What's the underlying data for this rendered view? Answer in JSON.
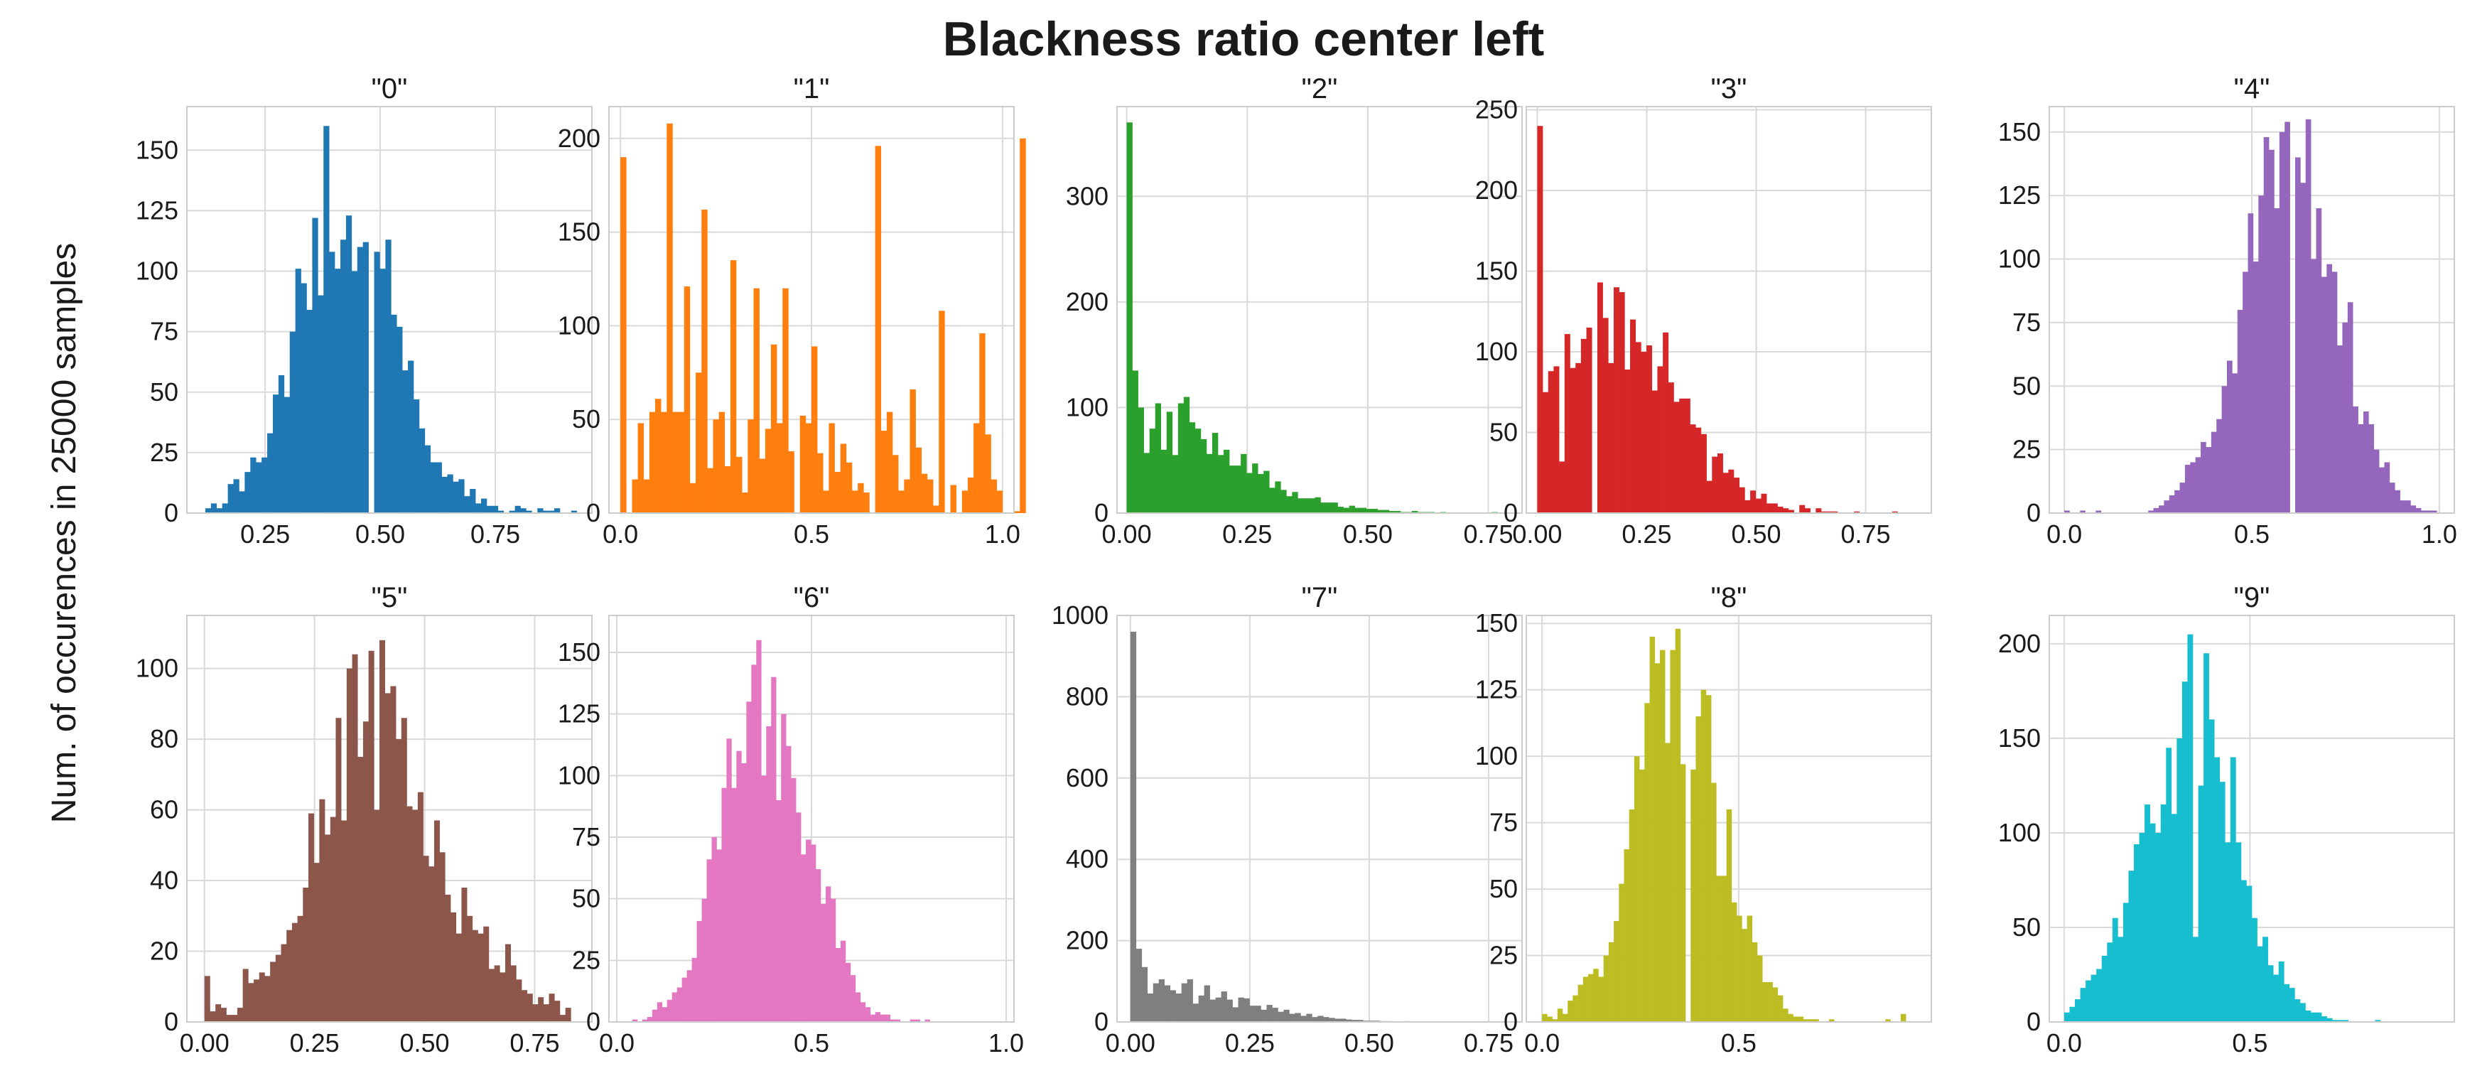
{
  "figure": {
    "title": "Blackness ratio center left",
    "ylabel": "Num. of occurences in 25000 samples"
  },
  "chart_data": [
    {
      "type": "bar",
      "title": "\"0\"",
      "color": "#1f77b4",
      "xlim": [
        0.08,
        0.96
      ],
      "ylim": [
        0,
        168
      ],
      "xticks": [
        0.25,
        0.5,
        0.75
      ],
      "xticklabels": [
        "0.25",
        "0.50",
        "0.75"
      ],
      "yticks": [
        0,
        25,
        50,
        75,
        100,
        125,
        150
      ],
      "yticklabels": [
        "0",
        "25",
        "50",
        "75",
        "100",
        "125",
        "150"
      ],
      "bin_start": 0.12,
      "bin_width": 0.01223,
      "values": [
        2,
        4,
        2,
        4,
        12,
        14,
        9,
        17,
        23,
        21,
        23,
        33,
        49,
        57,
        48,
        75,
        101,
        95,
        84,
        122,
        90,
        160,
        108,
        101,
        113,
        123,
        100,
        110,
        112,
        0,
        108,
        101,
        113,
        82,
        77,
        59,
        63,
        47,
        35,
        28,
        21,
        21,
        15,
        16,
        13,
        14,
        7,
        10,
        4,
        6,
        3,
        3,
        1,
        0,
        1,
        3,
        2,
        1,
        0,
        2,
        1,
        1,
        2,
        0,
        0,
        1
      ]
    },
    {
      "type": "bar",
      "title": "\"1\"",
      "color": "#ff7f0e",
      "xlim": [
        -0.03,
        1.03
      ],
      "ylim": [
        0,
        217
      ],
      "xticks": [
        0,
        0.5,
        1
      ],
      "xticklabels": [
        "0.0",
        "0.5",
        "1.0"
      ],
      "yticks": [
        0,
        50,
        100,
        150,
        200
      ],
      "yticklabels": [
        "0",
        "50",
        "100",
        "150",
        "200"
      ],
      "bin_start": 0,
      "bin_width": 0.01515,
      "values": [
        190,
        0,
        18,
        48,
        18,
        54,
        61,
        54,
        208,
        54,
        54,
        121,
        16,
        75,
        162,
        24,
        50,
        54,
        25,
        135,
        30,
        11,
        50,
        120,
        29,
        45,
        90,
        48,
        120,
        33,
        0,
        52,
        48,
        89,
        32,
        12,
        48,
        22,
        37,
        27,
        12,
        16,
        11,
        0,
        196,
        44,
        54,
        31,
        12,
        18,
        66,
        35,
        21,
        18,
        4,
        108,
        0,
        15,
        0,
        12,
        19,
        48,
        96,
        42,
        18,
        12,
        0,
        0,
        1,
        200
      ]
    },
    {
      "type": "bar",
      "title": "\"2\"",
      "color": "#2ca02c",
      "xlim": [
        -0.02,
        0.82
      ],
      "ylim": [
        0,
        385
      ],
      "xticks": [
        0,
        0.25,
        0.5,
        0.75
      ],
      "xticklabels": [
        "0.00",
        "0.25",
        "0.50",
        "0.75"
      ],
      "yticks": [
        0,
        100,
        200,
        300
      ],
      "yticklabels": [
        "0",
        "100",
        "200",
        "300"
      ],
      "bin_start": 0,
      "bin_width": 0.01183,
      "values": [
        370,
        135,
        100,
        57,
        80,
        104,
        60,
        96,
        55,
        104,
        110,
        86,
        80,
        70,
        56,
        76,
        55,
        60,
        45,
        45,
        56,
        38,
        47,
        37,
        40,
        24,
        30,
        22,
        16,
        20,
        14,
        14,
        14,
        15,
        10,
        10,
        10,
        6,
        5,
        7,
        5,
        5,
        4,
        4,
        3,
        3,
        2,
        2,
        1,
        1,
        2,
        1,
        1,
        1,
        0,
        1,
        0,
        0,
        0,
        0,
        0,
        0,
        0,
        0,
        1
      ]
    },
    {
      "type": "bar",
      "title": "\"3\"",
      "color": "#d62728",
      "xlim": [
        -0.025,
        0.9
      ],
      "ylim": [
        0,
        252
      ],
      "xticks": [
        0,
        0.25,
        0.5,
        0.75
      ],
      "xticklabels": [
        "0.00",
        "0.25",
        "0.50",
        "0.75"
      ],
      "yticks": [
        0,
        50,
        100,
        150,
        200,
        250
      ],
      "yticklabels": [
        "0",
        "50",
        "100",
        "150",
        "200",
        "250"
      ],
      "bin_start": 0,
      "bin_width": 0.01247,
      "values": [
        240,
        75,
        88,
        91,
        32,
        111,
        90,
        93,
        108,
        115,
        0,
        143,
        121,
        93,
        140,
        137,
        89,
        120,
        106,
        100,
        104,
        76,
        91,
        112,
        81,
        69,
        71,
        71,
        55,
        53,
        49,
        20,
        35,
        37,
        25,
        27,
        22,
        16,
        8,
        14,
        9,
        12,
        6,
        6,
        4,
        3,
        2,
        0,
        5,
        3,
        0,
        3,
        1,
        1,
        1,
        0,
        0,
        0,
        1,
        0,
        0,
        0,
        0,
        0,
        0,
        1,
        0,
        0,
        0
      ]
    },
    {
      "type": "bar",
      "title": "\"4\"",
      "color": "#9467bd",
      "xlim": [
        -0.04,
        1.04
      ],
      "ylim": [
        0,
        160
      ],
      "xticks": [
        0,
        0.5,
        1
      ],
      "xticklabels": [
        "0.0",
        "0.5",
        "1.0"
      ],
      "yticks": [
        0,
        25,
        50,
        75,
        100,
        125,
        150
      ],
      "yticklabels": [
        "0",
        "25",
        "50",
        "75",
        "100",
        "125",
        "150"
      ],
      "bin_start": 0,
      "bin_width": 0.01399,
      "values": [
        1,
        0,
        0,
        1,
        0,
        0,
        1,
        0,
        0,
        0,
        0,
        0,
        0,
        0,
        0,
        0,
        1,
        2,
        3,
        5,
        7,
        9,
        12,
        19,
        20,
        22,
        28,
        26,
        32,
        37,
        50,
        60,
        55,
        80,
        95,
        118,
        99,
        125,
        148,
        143,
        120,
        150,
        154,
        0,
        140,
        130,
        155,
        100,
        120,
        93,
        98,
        95,
        66,
        75,
        83,
        42,
        35,
        40,
        35,
        25,
        18,
        20,
        12,
        9,
        5,
        5,
        3,
        2,
        1,
        1,
        1
      ]
    },
    {
      "type": "bar",
      "title": "\"5\"",
      "color": "#8c564b",
      "xlim": [
        -0.04,
        0.88
      ],
      "ylim": [
        0,
        115
      ],
      "xticks": [
        0,
        0.25,
        0.5,
        0.75
      ],
      "xticklabels": [
        "0.00",
        "0.25",
        "0.50",
        "0.75"
      ],
      "yticks": [
        0,
        20,
        40,
        60,
        80,
        100
      ],
      "yticklabels": [
        "0",
        "20",
        "40",
        "60",
        "80",
        "100"
      ],
      "bin_start": 0,
      "bin_width": 0.01242,
      "values": [
        13,
        3,
        5,
        4,
        2,
        2,
        4,
        15,
        11,
        12,
        14,
        13,
        17,
        19,
        22,
        26,
        28,
        30,
        38,
        59,
        45,
        63,
        53,
        58,
        86,
        57,
        100,
        104,
        75,
        85,
        105,
        60,
        108,
        93,
        95,
        80,
        86,
        61,
        60,
        65,
        47,
        44,
        57,
        48,
        36,
        31,
        25,
        38,
        30,
        26,
        25,
        27,
        15,
        16,
        14,
        22,
        16,
        12,
        9,
        8,
        5,
        7,
        5,
        8,
        6,
        2,
        4
      ]
    },
    {
      "type": "bar",
      "title": "\"6\"",
      "color": "#e377c2",
      "xlim": [
        -0.02,
        1.02
      ],
      "ylim": [
        0,
        165
      ],
      "xticks": [
        0,
        0.5,
        1
      ],
      "xticklabels": [
        "0.0",
        "0.5",
        "1.0"
      ],
      "yticks": [
        0,
        25,
        50,
        75,
        100,
        125,
        150
      ],
      "yticklabels": [
        "0",
        "25",
        "50",
        "75",
        "100",
        "125",
        "150"
      ],
      "bin_start": 0.04,
      "bin_width": 0.01273,
      "values": [
        1,
        0,
        1,
        2,
        5,
        8,
        6,
        9,
        12,
        14,
        18,
        21,
        26,
        41,
        50,
        66,
        75,
        70,
        95,
        115,
        95,
        110,
        105,
        130,
        145,
        155,
        100,
        120,
        140,
        90,
        125,
        112,
        99,
        85,
        68,
        74,
        72,
        62,
        48,
        55,
        50,
        30,
        33,
        24,
        19,
        12,
        8,
        6,
        3,
        4,
        3,
        3,
        1,
        1,
        0,
        0,
        1,
        1,
        0,
        1,
        0,
        0
      ]
    },
    {
      "type": "bar",
      "title": "\"7\"",
      "color": "#7f7f7f",
      "xlim": [
        -0.028,
        0.82
      ],
      "ylim": [
        0,
        1000
      ],
      "xticks": [
        0,
        0.25,
        0.5,
        0.75
      ],
      "xticklabels": [
        "0.00",
        "0.25",
        "0.50",
        "0.75"
      ],
      "yticks": [
        0,
        200,
        400,
        600,
        800,
        1000
      ],
      "yticklabels": [
        "0",
        "200",
        "400",
        "600",
        "800",
        "1000"
      ],
      "bin_start": 0,
      "bin_width": 0.01188,
      "values": [
        960,
        180,
        135,
        70,
        95,
        105,
        90,
        78,
        70,
        95,
        105,
        45,
        65,
        90,
        55,
        60,
        75,
        55,
        36,
        60,
        58,
        40,
        40,
        30,
        42,
        35,
        25,
        30,
        20,
        22,
        15,
        20,
        12,
        15,
        12,
        10,
        8,
        8,
        6,
        5,
        5,
        3,
        3,
        3,
        2,
        2,
        1,
        1,
        2,
        1,
        1,
        1,
        0,
        0,
        1,
        0,
        0,
        0,
        0,
        0,
        0,
        0,
        0,
        1
      ]
    },
    {
      "type": "bar",
      "title": "\"8\"",
      "color": "#bcbd22",
      "xlim": [
        -0.04,
        0.99
      ],
      "ylim": [
        0,
        153
      ],
      "xticks": [
        0,
        0.5
      ],
      "xticklabels": [
        "0.0",
        "0.5"
      ],
      "yticks": [
        0,
        25,
        50,
        75,
        100,
        125,
        150
      ],
      "yticklabels": [
        "0",
        "25",
        "50",
        "75",
        "100",
        "125",
        "150"
      ],
      "bin_start": 0,
      "bin_width": 0.01303,
      "values": [
        3,
        2,
        1,
        5,
        3,
        8,
        10,
        14,
        17,
        18,
        20,
        17,
        25,
        30,
        38,
        52,
        65,
        80,
        100,
        95,
        120,
        145,
        135,
        140,
        105,
        140,
        148,
        97,
        0,
        95,
        115,
        125,
        123,
        90,
        55,
        55,
        80,
        45,
        40,
        35,
        40,
        30,
        25,
        15,
        15,
        13,
        10,
        5,
        3,
        2,
        2,
        1,
        1,
        1,
        0,
        0,
        1,
        0,
        0,
        0,
        0,
        0,
        0,
        0,
        0,
        0,
        0,
        1,
        0,
        0,
        3
      ]
    },
    {
      "type": "bar",
      "title": "\"9\"",
      "color": "#17becf",
      "xlim": [
        -0.04,
        1.05
      ],
      "ylim": [
        0,
        215
      ],
      "xticks": [
        0,
        0.5
      ],
      "xticklabels": [
        "0.0",
        "0.5"
      ],
      "yticks": [
        0,
        50,
        100,
        150,
        200
      ],
      "yticklabels": [
        "0",
        "50",
        "100",
        "150",
        "200"
      ],
      "bin_start": 0,
      "bin_width": 0.01443,
      "values": [
        5,
        8,
        12,
        18,
        22,
        25,
        28,
        35,
        42,
        55,
        45,
        63,
        80,
        94,
        100,
        115,
        105,
        100,
        115,
        145,
        110,
        150,
        180,
        205,
        45,
        125,
        195,
        160,
        140,
        127,
        95,
        140,
        95,
        75,
        72,
        55,
        40,
        45,
        30,
        25,
        32,
        20,
        18,
        12,
        10,
        6,
        5,
        5,
        3,
        2,
        1,
        1,
        1,
        0,
        0,
        0,
        0,
        0,
        1
      ]
    }
  ]
}
